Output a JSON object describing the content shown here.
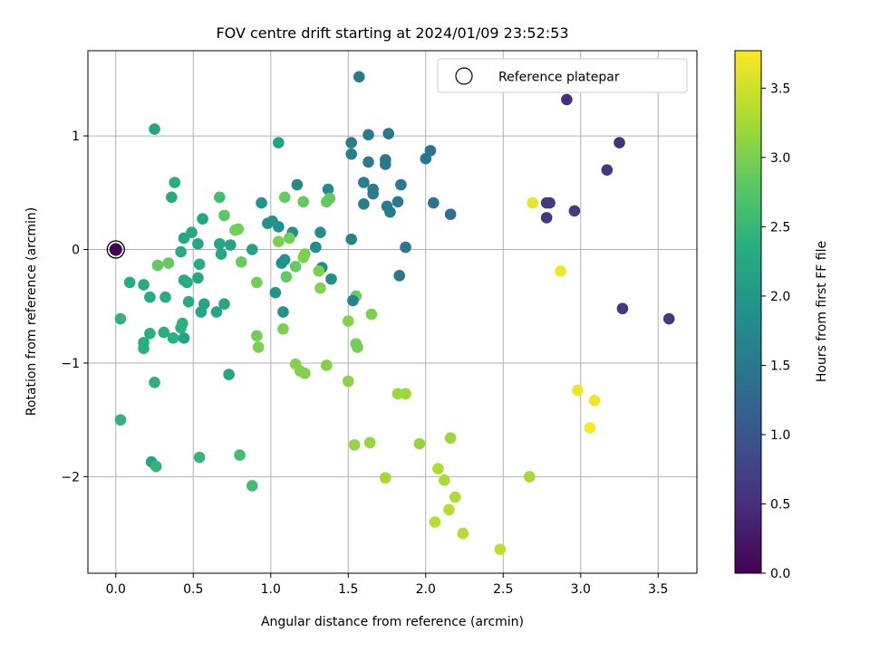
{
  "chart_data": {
    "type": "scatter",
    "title": "FOV centre drift starting at 2024/01/09 23:52:53",
    "xlabel": "Angular distance from reference (arcmin)",
    "ylabel": "Rotation from reference (arcmin)",
    "xlim": [
      -0.18,
      3.75
    ],
    "ylim": [
      -2.85,
      1.75
    ],
    "x_ticks": [
      0.0,
      0.5,
      1.0,
      1.5,
      2.0,
      2.5,
      3.0,
      3.5
    ],
    "x_tick_labels": [
      "0.0",
      "0.5",
      "1.0",
      "1.5",
      "2.0",
      "2.5",
      "3.0",
      "3.5"
    ],
    "y_ticks": [
      -2,
      -1,
      0,
      1
    ],
    "y_tick_labels": [
      "−2",
      "−1",
      "0",
      "1"
    ],
    "grid": true,
    "legend": {
      "placement": "upper-right",
      "entries": [
        "Reference platepar"
      ]
    },
    "colorbar": {
      "label": "Hours from first FF file",
      "colormap": "viridis",
      "range": [
        0.0,
        3.77
      ],
      "ticks": [
        0.0,
        0.5,
        1.0,
        1.5,
        2.0,
        2.5,
        3.0,
        3.5
      ],
      "tick_labels": [
        "0.0",
        "0.5",
        "1.0",
        "1.5",
        "2.0",
        "2.5",
        "3.0",
        "3.5"
      ]
    },
    "reference_point": {
      "x": 0.0,
      "y": 0.0,
      "c": 0.0
    },
    "points": [
      {
        "x": 1.57,
        "y": 1.52,
        "c": 1.55
      },
      {
        "x": 2.91,
        "y": 1.32,
        "c": 0.55
      },
      {
        "x": 0.25,
        "y": 1.06,
        "c": 2.2
      },
      {
        "x": 1.05,
        "y": 0.94,
        "c": 2.15
      },
      {
        "x": 1.52,
        "y": 0.94,
        "c": 1.6
      },
      {
        "x": 1.63,
        "y": 1.01,
        "c": 1.55
      },
      {
        "x": 1.76,
        "y": 1.02,
        "c": 1.5
      },
      {
        "x": 2.03,
        "y": 0.87,
        "c": 1.45
      },
      {
        "x": 2.0,
        "y": 0.8,
        "c": 1.45
      },
      {
        "x": 1.52,
        "y": 0.84,
        "c": 1.6
      },
      {
        "x": 1.74,
        "y": 0.79,
        "c": 1.5
      },
      {
        "x": 1.74,
        "y": 0.75,
        "c": 1.5
      },
      {
        "x": 1.63,
        "y": 0.77,
        "c": 1.55
      },
      {
        "x": 3.25,
        "y": 0.94,
        "c": 0.55
      },
      {
        "x": 3.17,
        "y": 0.7,
        "c": 0.6
      },
      {
        "x": 0.38,
        "y": 0.59,
        "c": 2.35
      },
      {
        "x": 0.36,
        "y": 0.46,
        "c": 2.3
      },
      {
        "x": 1.17,
        "y": 0.57,
        "c": 1.75
      },
      {
        "x": 1.37,
        "y": 0.53,
        "c": 1.75
      },
      {
        "x": 1.6,
        "y": 0.59,
        "c": 1.6
      },
      {
        "x": 1.66,
        "y": 0.53,
        "c": 1.55
      },
      {
        "x": 1.66,
        "y": 0.49,
        "c": 1.55
      },
      {
        "x": 1.84,
        "y": 0.57,
        "c": 1.5
      },
      {
        "x": 0.67,
        "y": 0.46,
        "c": 2.6
      },
      {
        "x": 1.09,
        "y": 0.46,
        "c": 2.85
      },
      {
        "x": 1.21,
        "y": 0.42,
        "c": 2.85
      },
      {
        "x": 1.38,
        "y": 0.45,
        "c": 2.85
      },
      {
        "x": 1.36,
        "y": 0.42,
        "c": 2.85
      },
      {
        "x": 0.94,
        "y": 0.41,
        "c": 1.95
      },
      {
        "x": 1.6,
        "y": 0.4,
        "c": 1.6
      },
      {
        "x": 1.75,
        "y": 0.38,
        "c": 1.55
      },
      {
        "x": 1.77,
        "y": 0.33,
        "c": 1.55
      },
      {
        "x": 1.82,
        "y": 0.42,
        "c": 1.55
      },
      {
        "x": 2.05,
        "y": 0.41,
        "c": 1.45
      },
      {
        "x": 2.16,
        "y": 0.31,
        "c": 1.35
      },
      {
        "x": 2.69,
        "y": 0.41,
        "c": 3.65
      },
      {
        "x": 2.78,
        "y": 0.41,
        "c": 0.65
      },
      {
        "x": 2.8,
        "y": 0.41,
        "c": 0.65
      },
      {
        "x": 2.78,
        "y": 0.28,
        "c": 0.65
      },
      {
        "x": 2.96,
        "y": 0.34,
        "c": 0.7
      },
      {
        "x": 0.7,
        "y": 0.3,
        "c": 2.8
      },
      {
        "x": 0.56,
        "y": 0.27,
        "c": 2.25
      },
      {
        "x": 0.98,
        "y": 0.23,
        "c": 1.95
      },
      {
        "x": 1.01,
        "y": 0.25,
        "c": 1.9
      },
      {
        "x": 1.05,
        "y": 0.2,
        "c": 1.9
      },
      {
        "x": 1.32,
        "y": 0.15,
        "c": 1.85
      },
      {
        "x": 1.14,
        "y": 0.15,
        "c": 1.85
      },
      {
        "x": 0.49,
        "y": 0.15,
        "c": 2.25
      },
      {
        "x": 0.79,
        "y": 0.18,
        "c": 2.95
      },
      {
        "x": 0.77,
        "y": 0.17,
        "c": 2.95
      },
      {
        "x": 0.44,
        "y": 0.1,
        "c": 2.25
      },
      {
        "x": 0.53,
        "y": 0.05,
        "c": 2.25
      },
      {
        "x": 0.67,
        "y": 0.05,
        "c": 2.2
      },
      {
        "x": 0.74,
        "y": 0.04,
        "c": 2.2
      },
      {
        "x": 1.05,
        "y": 0.07,
        "c": 3.0
      },
      {
        "x": 1.12,
        "y": 0.1,
        "c": 2.95
      },
      {
        "x": 1.52,
        "y": 0.09,
        "c": 1.7
      },
      {
        "x": 1.29,
        "y": 0.02,
        "c": 1.85
      },
      {
        "x": 0.88,
        "y": 0.0,
        "c": 2.15
      },
      {
        "x": 1.87,
        "y": 0.02,
        "c": 1.5
      },
      {
        "x": 0.42,
        "y": -0.02,
        "c": 2.3
      },
      {
        "x": 0.68,
        "y": -0.04,
        "c": 2.25
      },
      {
        "x": 1.22,
        "y": -0.04,
        "c": 3.0
      },
      {
        "x": 1.21,
        "y": -0.07,
        "c": 3.0
      },
      {
        "x": 1.09,
        "y": -0.09,
        "c": 1.9
      },
      {
        "x": 1.07,
        "y": -0.12,
        "c": 1.9
      },
      {
        "x": 0.27,
        "y": -0.14,
        "c": 2.85
      },
      {
        "x": 0.34,
        "y": -0.12,
        "c": 2.85
      },
      {
        "x": 0.54,
        "y": -0.13,
        "c": 2.3
      },
      {
        "x": 0.81,
        "y": -0.11,
        "c": 2.9
      },
      {
        "x": 1.16,
        "y": -0.15,
        "c": 2.85
      },
      {
        "x": 1.33,
        "y": -0.16,
        "c": 1.85
      },
      {
        "x": 1.31,
        "y": -0.19,
        "c": 3.0
      },
      {
        "x": 2.87,
        "y": -0.19,
        "c": 3.7
      },
      {
        "x": 1.83,
        "y": -0.23,
        "c": 1.5
      },
      {
        "x": 1.1,
        "y": -0.24,
        "c": 2.85
      },
      {
        "x": 0.53,
        "y": -0.25,
        "c": 2.25
      },
      {
        "x": 1.39,
        "y": -0.26,
        "c": 1.85
      },
      {
        "x": 0.09,
        "y": -0.29,
        "c": 2.3
      },
      {
        "x": 0.18,
        "y": -0.31,
        "c": 2.3
      },
      {
        "x": 0.44,
        "y": -0.27,
        "c": 2.3
      },
      {
        "x": 0.46,
        "y": -0.29,
        "c": 2.3
      },
      {
        "x": 0.91,
        "y": -0.29,
        "c": 2.95
      },
      {
        "x": 1.32,
        "y": -0.34,
        "c": 3.05
      },
      {
        "x": 1.03,
        "y": -0.38,
        "c": 1.95
      },
      {
        "x": 0.22,
        "y": -0.42,
        "c": 2.3
      },
      {
        "x": 0.32,
        "y": -0.42,
        "c": 2.3
      },
      {
        "x": 1.55,
        "y": -0.41,
        "c": 2.9
      },
      {
        "x": 1.53,
        "y": -0.45,
        "c": 1.65
      },
      {
        "x": 0.47,
        "y": -0.46,
        "c": 2.3
      },
      {
        "x": 0.57,
        "y": -0.48,
        "c": 2.2
      },
      {
        "x": 0.7,
        "y": -0.48,
        "c": 2.2
      },
      {
        "x": 3.27,
        "y": -0.52,
        "c": 0.6
      },
      {
        "x": 0.55,
        "y": -0.55,
        "c": 2.25
      },
      {
        "x": 0.65,
        "y": -0.55,
        "c": 2.25
      },
      {
        "x": 1.08,
        "y": -0.55,
        "c": 1.9
      },
      {
        "x": 1.65,
        "y": -0.57,
        "c": 3.0
      },
      {
        "x": 0.03,
        "y": -0.61,
        "c": 2.45
      },
      {
        "x": 3.57,
        "y": -0.61,
        "c": 0.6
      },
      {
        "x": 1.5,
        "y": -0.63,
        "c": 3.05
      },
      {
        "x": 0.43,
        "y": -0.65,
        "c": 2.4
      },
      {
        "x": 0.42,
        "y": -0.69,
        "c": 2.4
      },
      {
        "x": 1.08,
        "y": -0.7,
        "c": 3.0
      },
      {
        "x": 0.22,
        "y": -0.74,
        "c": 2.35
      },
      {
        "x": 0.31,
        "y": -0.73,
        "c": 2.35
      },
      {
        "x": 0.37,
        "y": -0.78,
        "c": 2.4
      },
      {
        "x": 0.44,
        "y": -0.78,
        "c": 2.15
      },
      {
        "x": 0.91,
        "y": -0.76,
        "c": 2.95
      },
      {
        "x": 0.18,
        "y": -0.82,
        "c": 2.35
      },
      {
        "x": 0.18,
        "y": -0.87,
        "c": 2.35
      },
      {
        "x": 1.55,
        "y": -0.83,
        "c": 2.95
      },
      {
        "x": 1.56,
        "y": -0.86,
        "c": 2.95
      },
      {
        "x": 0.92,
        "y": -0.86,
        "c": 3.0
      },
      {
        "x": 1.16,
        "y": -1.01,
        "c": 3.05
      },
      {
        "x": 1.19,
        "y": -1.07,
        "c": 3.05
      },
      {
        "x": 1.22,
        "y": -1.09,
        "c": 3.05
      },
      {
        "x": 1.36,
        "y": -1.02,
        "c": 3.05
      },
      {
        "x": 0.73,
        "y": -1.1,
        "c": 2.2
      },
      {
        "x": 1.5,
        "y": -1.16,
        "c": 3.1
      },
      {
        "x": 0.25,
        "y": -1.17,
        "c": 2.4
      },
      {
        "x": 1.82,
        "y": -1.27,
        "c": 3.2
      },
      {
        "x": 1.87,
        "y": -1.27,
        "c": 3.2
      },
      {
        "x": 2.98,
        "y": -1.24,
        "c": 3.7
      },
      {
        "x": 3.09,
        "y": -1.33,
        "c": 3.7
      },
      {
        "x": 0.03,
        "y": -1.5,
        "c": 2.45
      },
      {
        "x": 3.06,
        "y": -1.57,
        "c": 3.75
      },
      {
        "x": 2.16,
        "y": -1.66,
        "c": 3.2
      },
      {
        "x": 1.54,
        "y": -1.72,
        "c": 3.15
      },
      {
        "x": 1.64,
        "y": -1.7,
        "c": 3.15
      },
      {
        "x": 1.96,
        "y": -1.71,
        "c": 3.15
      },
      {
        "x": 0.54,
        "y": -1.83,
        "c": 2.5
      },
      {
        "x": 0.8,
        "y": -1.81,
        "c": 2.6
      },
      {
        "x": 0.23,
        "y": -1.87,
        "c": 2.2
      },
      {
        "x": 0.26,
        "y": -1.91,
        "c": 2.45
      },
      {
        "x": 2.08,
        "y": -1.93,
        "c": 3.3
      },
      {
        "x": 1.74,
        "y": -2.01,
        "c": 3.25
      },
      {
        "x": 2.67,
        "y": -2.0,
        "c": 3.25
      },
      {
        "x": 2.12,
        "y": -2.03,
        "c": 3.3
      },
      {
        "x": 0.88,
        "y": -2.08,
        "c": 2.6
      },
      {
        "x": 2.19,
        "y": -2.18,
        "c": 3.3
      },
      {
        "x": 2.15,
        "y": -2.29,
        "c": 3.35
      },
      {
        "x": 2.06,
        "y": -2.4,
        "c": 3.35
      },
      {
        "x": 2.24,
        "y": -2.5,
        "c": 3.35
      },
      {
        "x": 2.48,
        "y": -2.64,
        "c": 3.4
      }
    ]
  }
}
